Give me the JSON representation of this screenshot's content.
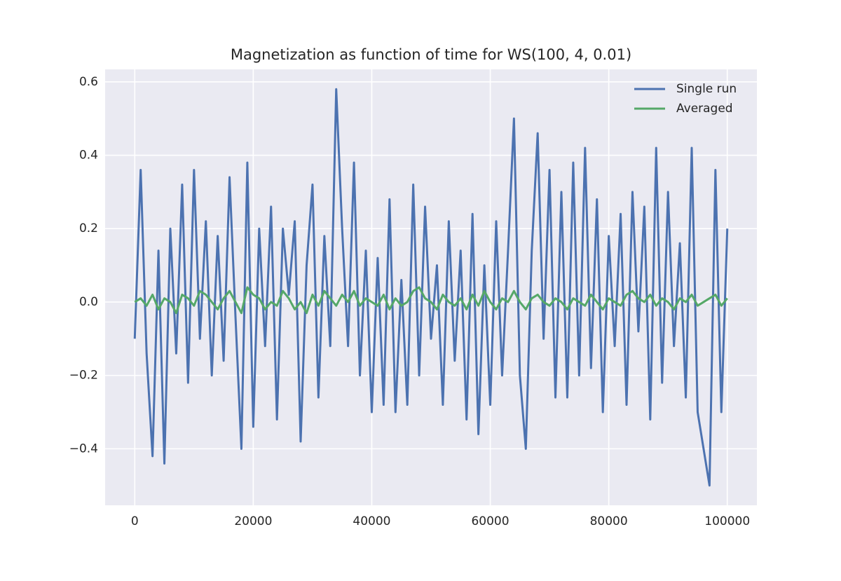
{
  "chart_data": {
    "type": "line",
    "title": "Magnetization as function of time for WS(100, 4, 0.01)",
    "x": [
      0,
      1000,
      2000,
      3000,
      4000,
      5000,
      6000,
      7000,
      8000,
      9000,
      10000,
      11000,
      12000,
      13000,
      14000,
      15000,
      16000,
      17000,
      18000,
      19000,
      20000,
      21000,
      22000,
      23000,
      24000,
      25000,
      26000,
      27000,
      28000,
      29000,
      30000,
      31000,
      32000,
      33000,
      34000,
      35000,
      36000,
      37000,
      38000,
      39000,
      40000,
      41000,
      42000,
      43000,
      44000,
      45000,
      46000,
      47000,
      48000,
      49000,
      50000,
      51000,
      52000,
      53000,
      54000,
      55000,
      56000,
      57000,
      58000,
      59000,
      60000,
      61000,
      62000,
      63000,
      64000,
      65000,
      66000,
      67000,
      68000,
      69000,
      70000,
      71000,
      72000,
      73000,
      74000,
      75000,
      76000,
      77000,
      78000,
      79000,
      80000,
      81000,
      82000,
      83000,
      84000,
      85000,
      86000,
      87000,
      88000,
      89000,
      90000,
      91000,
      92000,
      93000,
      94000,
      95000,
      96000,
      97000,
      98000,
      99000,
      100000
    ],
    "series": [
      {
        "name": "Single run",
        "color": "#4c72b0",
        "values": [
          -0.1,
          0.36,
          -0.14,
          -0.42,
          0.14,
          -0.44,
          0.2,
          -0.14,
          0.32,
          -0.22,
          0.36,
          -0.1,
          0.22,
          -0.2,
          0.18,
          -0.16,
          0.34,
          -0.04,
          -0.4,
          0.38,
          -0.34,
          0.2,
          -0.12,
          0.26,
          -0.32,
          0.2,
          0.02,
          0.22,
          -0.38,
          0.1,
          0.32,
          -0.26,
          0.18,
          -0.12,
          0.58,
          0.2,
          -0.12,
          0.38,
          -0.2,
          0.14,
          -0.3,
          0.12,
          -0.28,
          0.28,
          -0.3,
          0.06,
          -0.28,
          0.32,
          -0.2,
          0.26,
          -0.1,
          0.1,
          -0.28,
          0.22,
          -0.16,
          0.14,
          -0.32,
          0.24,
          -0.36,
          0.1,
          -0.28,
          0.22,
          -0.2,
          0.14,
          0.5,
          -0.2,
          -0.4,
          0.14,
          0.46,
          -0.1,
          0.36,
          -0.26,
          0.3,
          -0.26,
          0.38,
          -0.2,
          0.42,
          -0.18,
          0.28,
          -0.3,
          0.18,
          -0.12,
          0.24,
          -0.28,
          0.3,
          -0.08,
          0.26,
          -0.32,
          0.42,
          -0.22,
          0.3,
          -0.12,
          0.16,
          -0.26,
          0.42,
          -0.3,
          -0.4,
          -0.5,
          0.36,
          -0.3,
          0.2
        ]
      },
      {
        "name": "Averaged",
        "color": "#55a868",
        "values": [
          0.0,
          0.01,
          -0.01,
          0.02,
          -0.02,
          0.01,
          0.0,
          -0.03,
          0.02,
          0.01,
          -0.01,
          0.03,
          0.02,
          0.0,
          -0.02,
          0.01,
          0.03,
          0.0,
          -0.03,
          0.04,
          0.02,
          0.01,
          -0.02,
          0.0,
          -0.01,
          0.03,
          0.01,
          -0.02,
          0.0,
          -0.03,
          0.02,
          -0.01,
          0.03,
          0.01,
          -0.01,
          0.02,
          0.0,
          0.03,
          -0.01,
          0.01,
          0.0,
          -0.01,
          0.02,
          -0.02,
          0.01,
          -0.01,
          0.0,
          0.03,
          0.04,
          0.01,
          0.0,
          -0.02,
          0.02,
          0.0,
          -0.01,
          0.01,
          -0.02,
          0.02,
          -0.01,
          0.03,
          0.0,
          -0.02,
          0.01,
          0.0,
          0.03,
          0.0,
          -0.02,
          0.01,
          0.02,
          0.0,
          -0.01,
          0.01,
          0.0,
          -0.02,
          0.01,
          0.0,
          -0.01,
          0.02,
          0.0,
          -0.02,
          0.01,
          0.0,
          -0.01,
          0.02,
          0.03,
          0.01,
          0.0,
          0.02,
          -0.01,
          0.01,
          0.0,
          -0.02,
          0.01,
          0.0,
          0.02,
          -0.01,
          0.0,
          0.01,
          0.02,
          -0.01,
          0.01
        ]
      }
    ],
    "xlim": [
      -5000,
      105000
    ],
    "ylim": [
      -0.554,
      0.634
    ],
    "xticks": [
      0,
      20000,
      40000,
      60000,
      80000,
      100000
    ],
    "yticks": [
      {
        "value": -0.4,
        "label": "−0.4"
      },
      {
        "value": -0.2,
        "label": "−0.2"
      },
      {
        "value": 0,
        "label": "0.0"
      },
      0.2,
      0.4,
      0.6
    ],
    "grid": true,
    "legend": "upper right",
    "background": "#eaeaf2"
  }
}
